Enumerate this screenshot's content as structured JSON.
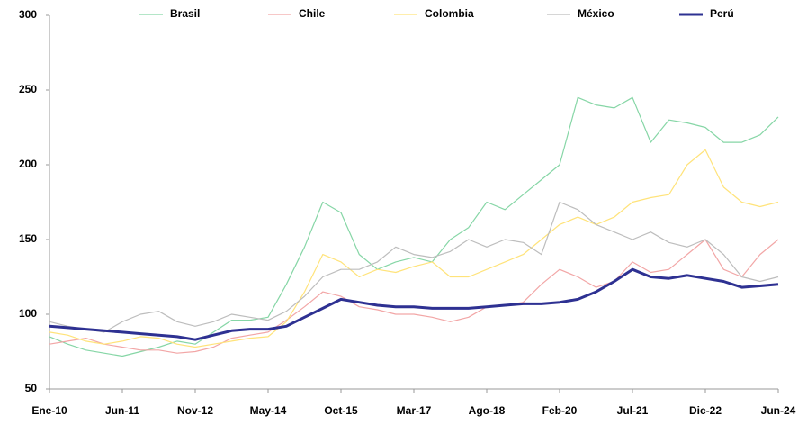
{
  "chart_data": {
    "type": "line",
    "categories": [
      "Ene-10",
      null,
      null,
      null,
      "Jun-11",
      null,
      null,
      null,
      "Nov-12",
      null,
      null,
      null,
      "May-14",
      null,
      null,
      null,
      "Oct-15",
      null,
      null,
      null,
      "Mar-17",
      null,
      null,
      null,
      "Ago-18",
      null,
      null,
      null,
      "Feb-20",
      null,
      null,
      null,
      "Jul-21",
      null,
      null,
      null,
      "Dic-22",
      null,
      null,
      null,
      "Jun-24"
    ],
    "series": [
      {
        "name": "Brasil",
        "color": "#86d6a6",
        "width": 1.2,
        "values": [
          85,
          80,
          76,
          74,
          72,
          75,
          78,
          82,
          80,
          88,
          96,
          96,
          98,
          120,
          145,
          175,
          168,
          140,
          130,
          135,
          138,
          135,
          150,
          158,
          175,
          170,
          180,
          190,
          200,
          245,
          240,
          238,
          245,
          215,
          230,
          228,
          225,
          215,
          215,
          220,
          232
        ]
      },
      {
        "name": "Chile",
        "color": "#f2a6a6",
        "width": 1.2,
        "values": [
          80,
          82,
          84,
          80,
          78,
          76,
          76,
          74,
          75,
          78,
          84,
          86,
          88,
          96,
          105,
          115,
          112,
          105,
          103,
          100,
          100,
          98,
          95,
          98,
          105,
          106,
          108,
          120,
          130,
          125,
          118,
          122,
          135,
          128,
          130,
          140,
          150,
          130,
          125,
          140,
          150
        ]
      },
      {
        "name": "Colombia",
        "color": "#ffe37a",
        "width": 1.2,
        "values": [
          88,
          86,
          82,
          80,
          82,
          85,
          84,
          80,
          78,
          80,
          82,
          84,
          85,
          95,
          115,
          140,
          135,
          125,
          130,
          128,
          132,
          135,
          125,
          125,
          130,
          135,
          140,
          150,
          160,
          165,
          160,
          165,
          175,
          178,
          180,
          200,
          210,
          185,
          175,
          172,
          175
        ]
      },
      {
        "name": "México",
        "color": "#bdbdbd",
        "width": 1.2,
        "values": [
          95,
          92,
          90,
          88,
          95,
          100,
          102,
          95,
          92,
          95,
          100,
          98,
          96,
          102,
          112,
          125,
          130,
          130,
          135,
          145,
          140,
          138,
          142,
          150,
          145,
          150,
          148,
          140,
          175,
          170,
          160,
          155,
          150,
          155,
          148,
          145,
          150,
          140,
          125,
          122,
          125
        ]
      },
      {
        "name": "Perú",
        "color": "#2e3192",
        "width": 3,
        "values": [
          92,
          91,
          90,
          89,
          88,
          87,
          86,
          85,
          83,
          86,
          89,
          90,
          90,
          92,
          98,
          104,
          110,
          108,
          106,
          105,
          105,
          104,
          104,
          104,
          105,
          106,
          107,
          107,
          108,
          110,
          115,
          122,
          130,
          125,
          124,
          126,
          124,
          122,
          118,
          119,
          120
        ]
      }
    ],
    "ylim": [
      50,
      300
    ],
    "yticks": [
      50,
      100,
      150,
      200,
      250,
      300
    ],
    "grid": false,
    "legend": "top"
  }
}
